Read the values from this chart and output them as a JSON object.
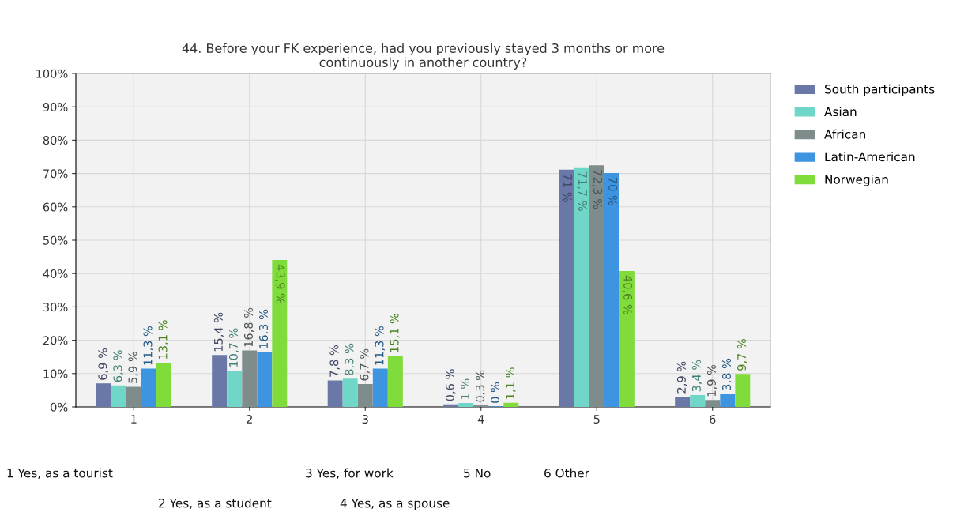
{
  "chart_data": {
    "type": "bar",
    "title": "44. Before your FK experience, had you previously stayed 3 months or more\ncontinuously in another country?",
    "categories": [
      "1",
      "2",
      "3",
      "4",
      "5",
      "6"
    ],
    "series": [
      {
        "name": "South participants",
        "color": "#6a78a8",
        "values": [
          6.9,
          15.4,
          7.8,
          0.6,
          71,
          2.9
        ],
        "value_labels": [
          "6,9 %",
          "15,4 %",
          "7,8 %",
          "0,6 %",
          "71 %",
          "2,9 %"
        ]
      },
      {
        "name": "Asian",
        "color": "#6fd6c8",
        "values": [
          6.3,
          10.7,
          8.3,
          1,
          71.7,
          3.4
        ],
        "value_labels": [
          "6,3 %",
          "10,7 %",
          "8,3 %",
          "1 %",
          "71,7 %",
          "3,4 %"
        ]
      },
      {
        "name": "African",
        "color": "#7f8c8c",
        "values": [
          5.9,
          16.8,
          6.7,
          0.3,
          72.3,
          1.9
        ],
        "value_labels": [
          "5,9 %",
          "16,8 %",
          "6,7 %",
          "0,3 %",
          "72,3 %",
          "1,9 %"
        ]
      },
      {
        "name": "Latin-American",
        "color": "#3d94e0",
        "values": [
          11.3,
          16.3,
          11.3,
          0,
          70,
          3.8
        ],
        "value_labels": [
          "11,3 %",
          "16,3 %",
          "11,3 %",
          "0 %",
          "70 %",
          "3,8 %"
        ]
      },
      {
        "name": "Norwegian",
        "color": "#7fdc3a",
        "values": [
          13.1,
          43.9,
          15.1,
          1.1,
          40.6,
          9.7
        ],
        "value_labels": [
          "13,1 %",
          "43,9 %",
          "15,1 %",
          "1,1 %",
          "40,6 %",
          "9,7 %"
        ]
      }
    ],
    "ylim": [
      0,
      100
    ],
    "yticks": [
      {
        "value": 0,
        "label": "0%"
      },
      {
        "value": 10,
        "label": "10%"
      },
      {
        "value": 20,
        "label": "20%"
      },
      {
        "value": 30,
        "label": "30%"
      },
      {
        "value": 40,
        "label": "40%"
      },
      {
        "value": 50,
        "label": "50%"
      },
      {
        "value": 60,
        "label": "60%"
      },
      {
        "value": 70,
        "label": "70%"
      },
      {
        "value": 80,
        "label": "80%"
      },
      {
        "value": 90,
        "label": "90%"
      },
      {
        "value": 100,
        "label": "100%"
      }
    ],
    "grid": true,
    "legend": "top right",
    "annotations": [
      "1 Yes, as a tourist",
      "2 Yes, as a student",
      "3 Yes, for work",
      "4 Yes, as a spouse",
      "5 No",
      "6 Other"
    ]
  }
}
